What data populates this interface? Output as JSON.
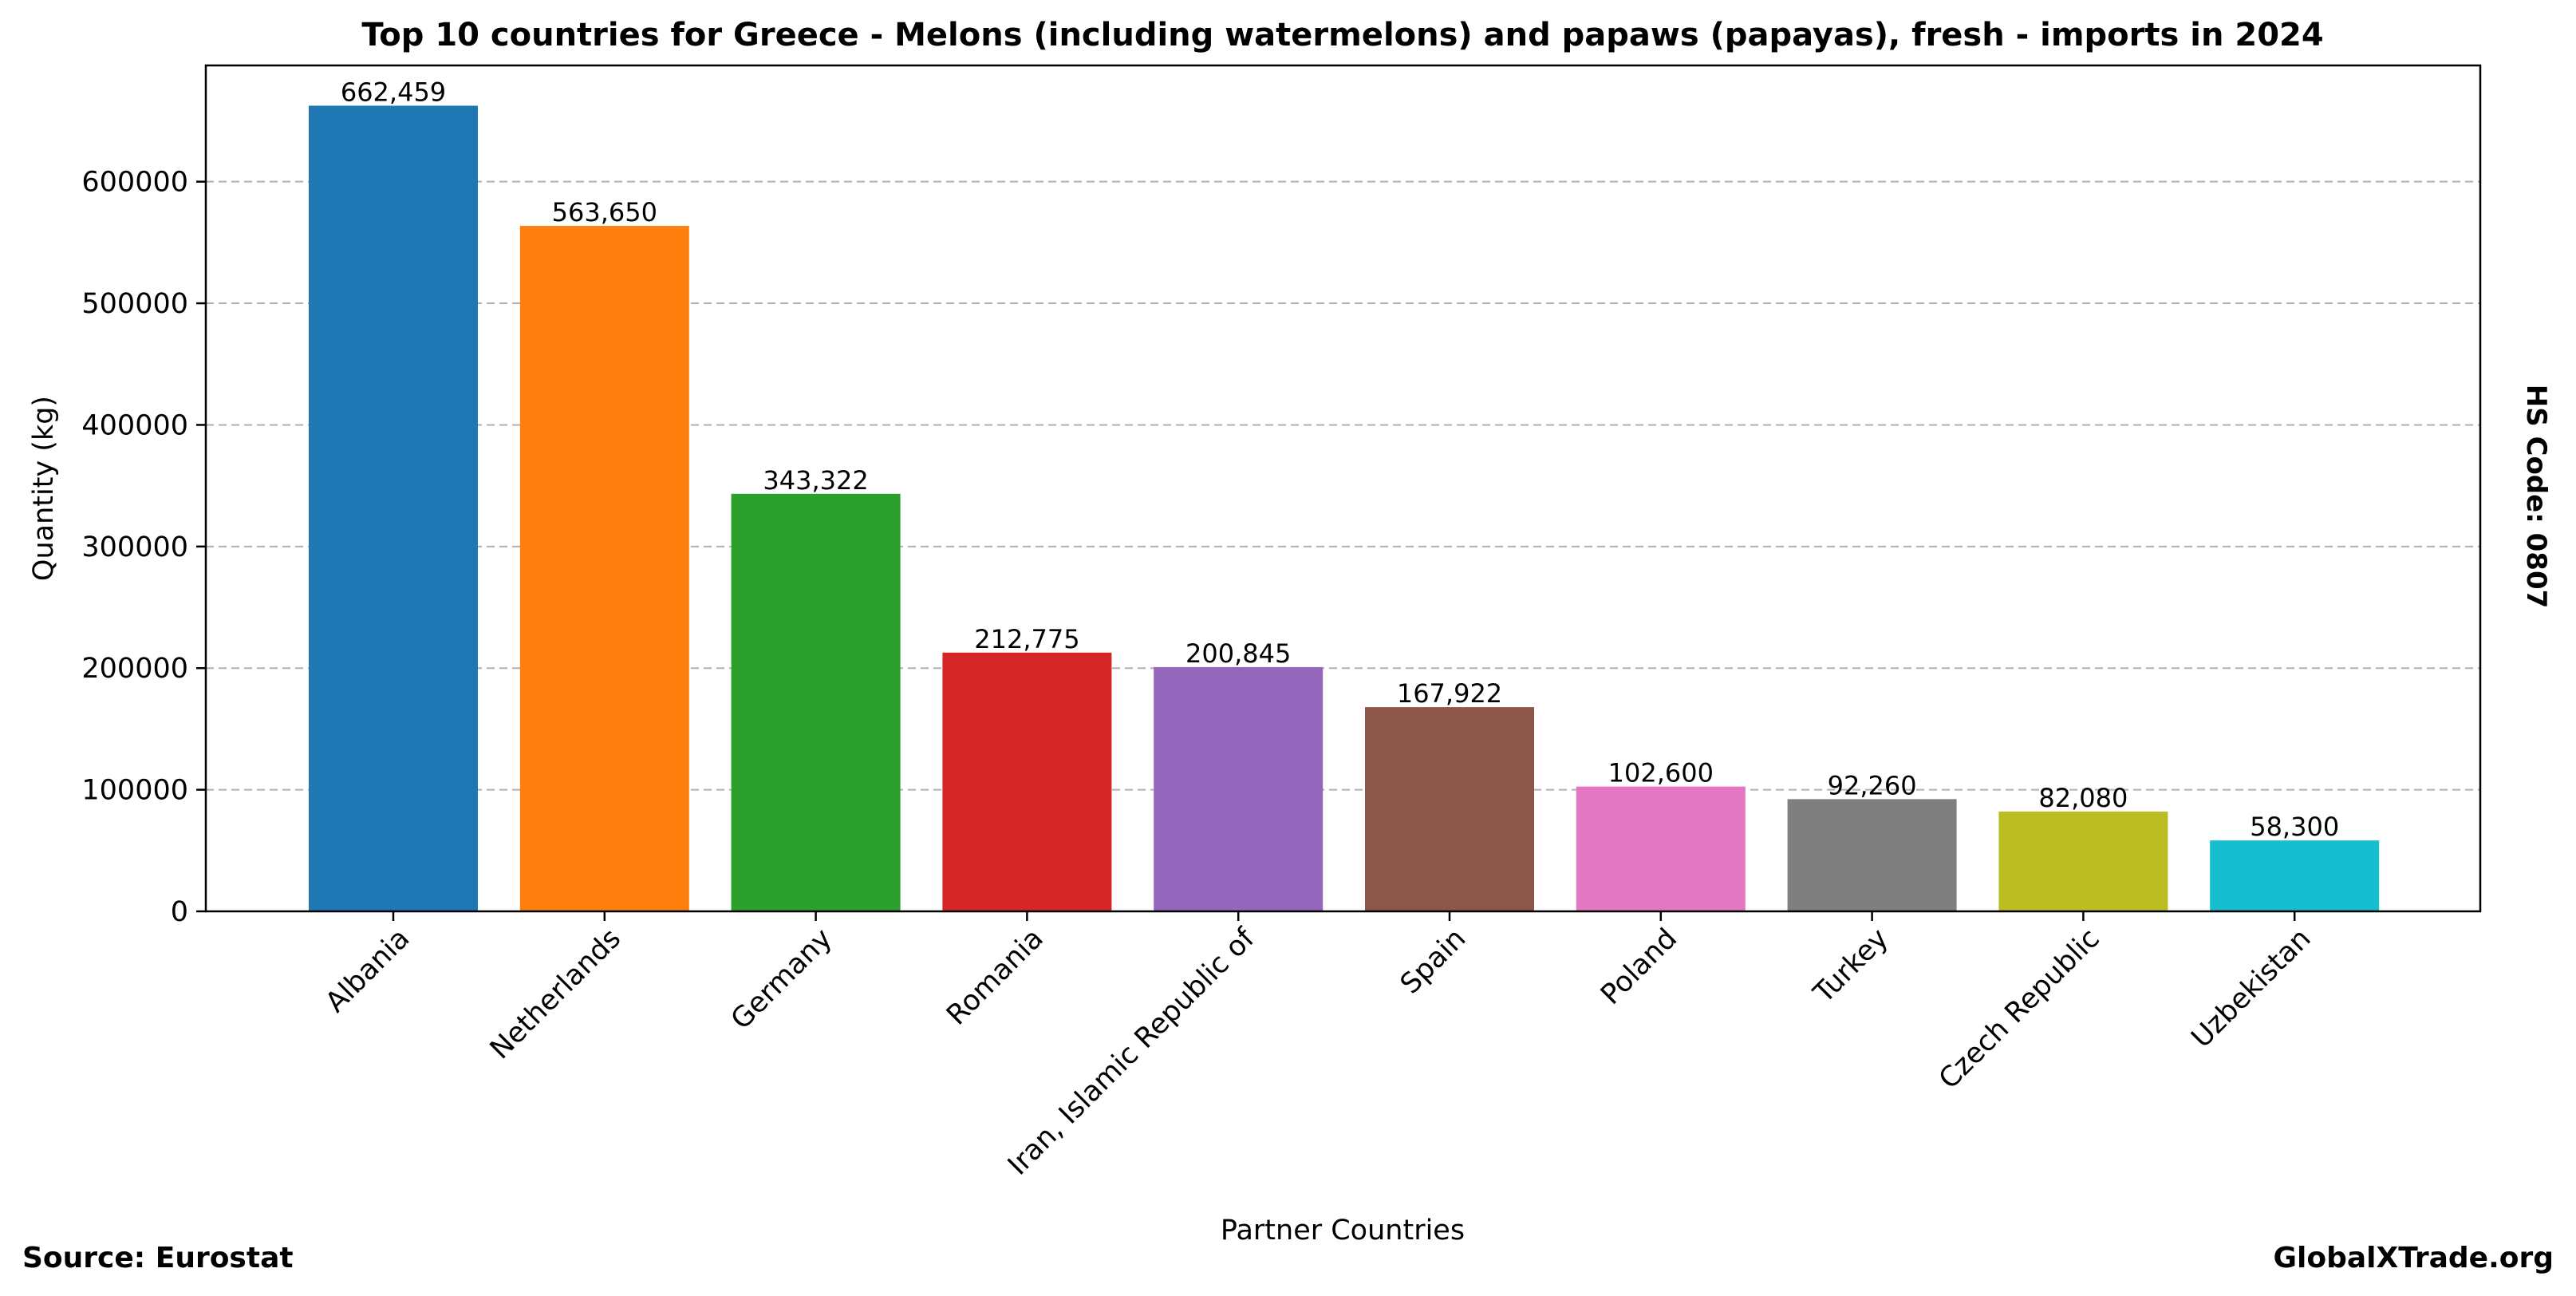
{
  "chart_data": {
    "type": "bar",
    "title": "Top 10 countries for Greece - Melons (including watermelons) and papaws (papayas), fresh - imports in 2024",
    "xlabel": "Partner Countries",
    "ylabel": "Quantity (kg)",
    "categories": [
      "Albania",
      "Netherlands",
      "Germany",
      "Romania",
      "Iran, Islamic Republic of",
      "Spain",
      "Poland",
      "Turkey",
      "Czech Republic",
      "Uzbekistan"
    ],
    "values": [
      662459,
      563650,
      343322,
      212775,
      200845,
      167922,
      102600,
      92260,
      82080,
      58300
    ],
    "value_labels": [
      "662,459",
      "563,650",
      "343,322",
      "212,775",
      "200,845",
      "167,922",
      "102,600",
      "92,260",
      "82,080",
      "58,300"
    ],
    "colors": [
      "#1f77b4",
      "#ff7f0e",
      "#2ca02c",
      "#d62728",
      "#9467bd",
      "#8c564b",
      "#e377c2",
      "#7f7f7f",
      "#bcbd22",
      "#17becf"
    ],
    "ylim": [
      0,
      695582
    ],
    "yticks": [
      0,
      100000,
      200000,
      300000,
      400000,
      500000,
      600000
    ],
    "ytick_labels": [
      "0",
      "100000",
      "200000",
      "300000",
      "400000",
      "500000",
      "600000"
    ],
    "grid": "y-axis dashed",
    "legend": "none"
  },
  "side_label": "HS Code: 0807",
  "footer": {
    "source": "Source: Eurostat",
    "brand": "GlobalXTrade.org"
  }
}
